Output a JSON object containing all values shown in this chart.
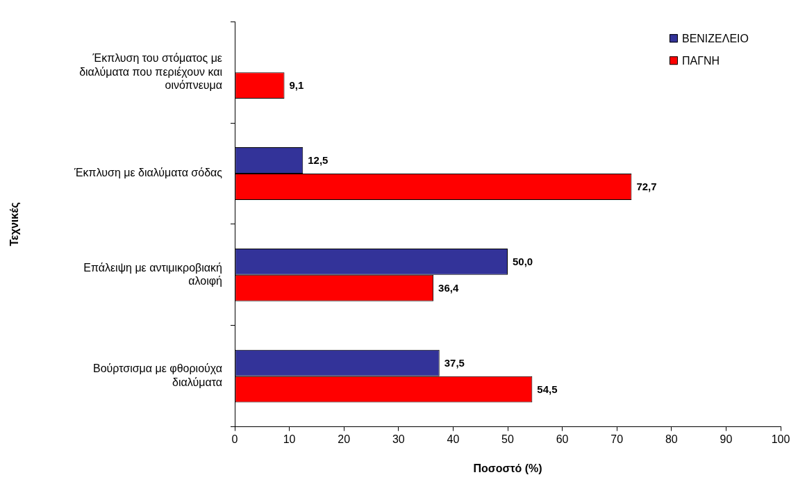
{
  "chart_data": {
    "type": "bar",
    "orientation": "horizontal",
    "xlabel": "Ποσοστό (%)",
    "ylabel": "Τεχνικές",
    "categories": [
      "Έκπλυση του στόματος με διαλύματα που περιέχουν και οινόπνευμα",
      "Έκπλυση με διαλύματα σόδας",
      "Επάλειψη με αντιμικροβιακή αλοιφή",
      "Βούρτσισμα με φθοριούχα διαλύματα"
    ],
    "series": [
      {
        "name": "ΒΕΝΙΖΕΛΕΙΟ",
        "color": "#333399",
        "values": [
          null,
          12.5,
          50.0,
          37.5
        ],
        "value_labels": [
          null,
          "12,5",
          "50,0",
          "37,5"
        ]
      },
      {
        "name": "ΠΑΓΝΗ",
        "color": "#ff0000",
        "values": [
          9.1,
          72.7,
          36.4,
          54.5
        ],
        "value_labels": [
          "9,1",
          "72,7",
          "36,4",
          "54,5"
        ]
      }
    ],
    "xlim": [
      0,
      100
    ],
    "xticks": [
      0,
      10,
      20,
      30,
      40,
      50,
      60,
      70,
      80,
      90,
      100
    ],
    "legend": "top right"
  }
}
